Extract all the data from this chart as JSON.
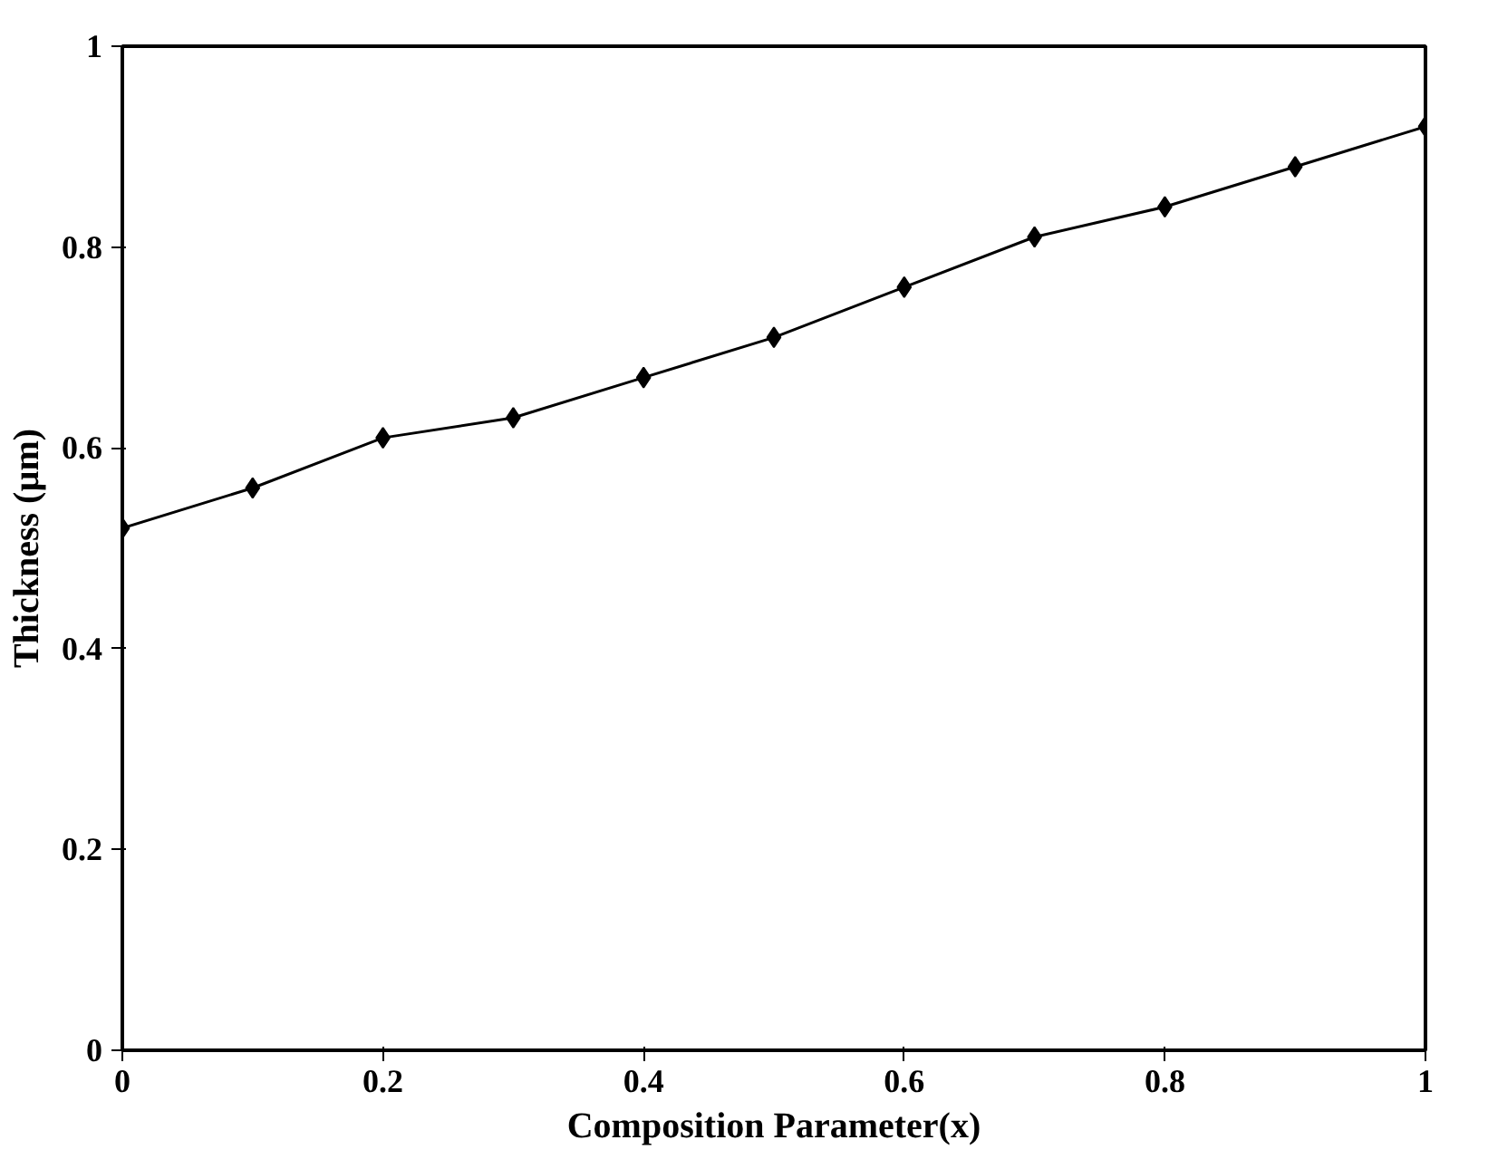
{
  "chart_data": {
    "type": "line",
    "xlabel": "Composition Parameter(x)",
    "ylabel": "Thickness (µm)",
    "x": [
      0,
      0.1,
      0.2,
      0.3,
      0.4,
      0.5,
      0.6,
      0.7,
      0.8,
      0.9,
      1
    ],
    "series": [
      {
        "color": "#000000",
        "values": [
          0.52,
          0.56,
          0.61,
          0.63,
          0.67,
          0.71,
          0.76,
          0.81,
          0.84,
          0.88,
          0.92
        ]
      }
    ],
    "xlim": [
      0,
      1
    ],
    "ylim": [
      0,
      1
    ],
    "xticks": [
      0,
      0.2,
      0.4,
      0.6,
      0.8,
      1
    ],
    "yticks": [
      0,
      0.2,
      0.4,
      0.6,
      0.8,
      1
    ],
    "grid": false,
    "marker": "diamond",
    "line_style": "solid"
  }
}
